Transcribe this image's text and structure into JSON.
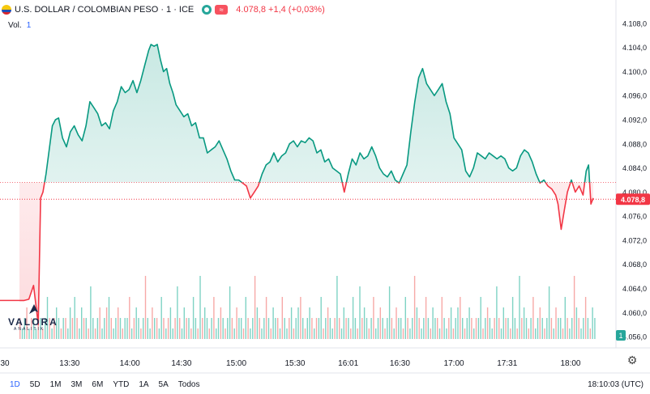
{
  "header": {
    "instrument": "U.S. DOLLAR / COLOMBIAN PESO · 1 · ICE",
    "price_change": "4.078,8 +1,4 (+0,03%)",
    "volume_label": "Vol.",
    "volume_value": "1",
    "flag_icon": "usd-cop-flag-icon"
  },
  "logo": {
    "name": "VALORA",
    "sub": "ANALITIK"
  },
  "timeframes": [
    "1D",
    "5D",
    "1M",
    "3M",
    "6M",
    "YTD",
    "1A",
    "5A",
    "Todos"
  ],
  "active_timeframe": "1D",
  "clock": "18:10:03 (UTC)",
  "colors": {
    "up": "#089981",
    "down": "#f23645",
    "vol_up": "#7fd3c4",
    "vol_down": "#f7a9a7",
    "current": "#f23645"
  },
  "chart_data": {
    "type": "area",
    "y_ticks": [
      "4.108,0",
      "4.104,0",
      "4.100,0",
      "4.096,0",
      "4.092,0",
      "4.088,0",
      "4.084,0",
      "4.080,0",
      "4.076,0",
      "4.072,0",
      "4.068,0",
      "4.064,0",
      "4.060,0",
      "4.056,0"
    ],
    "ylim": [
      4055.2,
      4110.0
    ],
    "x_ticks": [
      "30",
      "13:30",
      "14:00",
      "14:30",
      "15:00",
      "15:30",
      "16:01",
      "16:30",
      "17:00",
      "17:31",
      "18:00"
    ],
    "reference_price": 4081.6,
    "current_price_label": "4.078,8",
    "current_price": 4078.8,
    "volume_badge": "1",
    "x": [
      0,
      6,
      12,
      18,
      24,
      27,
      30,
      34,
      38,
      42,
      46,
      50,
      55,
      60,
      65,
      70,
      75,
      80,
      85,
      90,
      95,
      100,
      105,
      110,
      115,
      120,
      125,
      130,
      135,
      140,
      145,
      150,
      155,
      160,
      165,
      168,
      172,
      176,
      180,
      184,
      188,
      192,
      196,
      200,
      205,
      210,
      215,
      220,
      225,
      230,
      235,
      240,
      245,
      250,
      255,
      260,
      265,
      270,
      275,
      280,
      285,
      290,
      295,
      300,
      305,
      310,
      315,
      320,
      325,
      330,
      335,
      340,
      345,
      350,
      355,
      360,
      365,
      370,
      375,
      380,
      385,
      390,
      395,
      400,
      405,
      410,
      415,
      420,
      425,
      430,
      435,
      440,
      445,
      450,
      455,
      460,
      465,
      470,
      475,
      480,
      485,
      490,
      495,
      500,
      505,
      510,
      515,
      520,
      525,
      530,
      535,
      540,
      545,
      550,
      555,
      560,
      565,
      570,
      575,
      580,
      585,
      590,
      595,
      600,
      605,
      610,
      615,
      620,
      625,
      630,
      635,
      640,
      645,
      650,
      655,
      660,
      665,
      670,
      675,
      680,
      685,
      688,
      692,
      696,
      700,
      705,
      710,
      715,
      720,
      724,
      727,
      730,
      733
    ],
    "values": [
      4062.0,
      4062.0,
      4062.2,
      4064.5,
      4058.0,
      4079.0,
      4080.0,
      4083.0,
      4087.0,
      4091.0,
      4092.0,
      4092.3,
      4089.0,
      4087.5,
      4090.0,
      4091.0,
      4089.5,
      4088.5,
      4091.0,
      4095.0,
      4094.0,
      4093.0,
      4091.0,
      4091.5,
      4090.5,
      4093.5,
      4095.0,
      4097.5,
      4096.5,
      4097.0,
      4098.5,
      4096.5,
      4098.5,
      4101.0,
      4103.5,
      4104.5,
      4104.2,
      4104.5,
      4102.0,
      4100.0,
      4100.5,
      4098.0,
      4096.5,
      4094.5,
      4093.5,
      4092.5,
      4093.0,
      4091.0,
      4091.5,
      4089.0,
      4089.0,
      4086.5,
      4087.0,
      4087.5,
      4088.5,
      4087.0,
      4085.5,
      4083.5,
      4082.0,
      4082.0,
      4081.5,
      4081.0,
      4079.0,
      4080.0,
      4081.0,
      4083.0,
      4084.5,
      4085.0,
      4086.5,
      4085.0,
      4086.0,
      4086.5,
      4088.0,
      4088.5,
      4087.5,
      4088.5,
      4088.2,
      4089.0,
      4088.5,
      4086.5,
      4087.0,
      4085.0,
      4085.5,
      4084.0,
      4083.5,
      4083.0,
      4080.0,
      4083.0,
      4085.5,
      4084.5,
      4086.5,
      4085.5,
      4086.0,
      4087.5,
      4086.0,
      4084.0,
      4083.0,
      4082.5,
      4083.5,
      4082.0,
      4081.5,
      4083.0,
      4084.5,
      4090.0,
      4095.0,
      4099.0,
      4100.5,
      4098.0,
      4097.0,
      4096.0,
      4097.0,
      4098.0,
      4095.0,
      4093.0,
      4089.0,
      4088.0,
      4087.0,
      4083.5,
      4082.5,
      4084.0,
      4086.5,
      4086.0,
      4085.5,
      4086.5,
      4086.0,
      4085.5,
      4086.0,
      4085.5,
      4084.0,
      4083.5,
      4084.0,
      4086.0,
      4087.0,
      4086.5,
      4085.0,
      4083.0,
      4081.5,
      4082.0,
      4081.0,
      4080.5,
      4079.5,
      4078.0,
      4073.8,
      4077.0,
      4080.0,
      4082.0,
      4080.0,
      4081.0,
      4079.5,
      4083.5,
      4084.5,
      4078.0,
      4079.0
    ],
    "volume_bars": [
      2,
      1,
      2,
      3,
      1,
      2,
      2,
      1,
      3,
      2,
      1,
      2,
      4,
      2,
      1,
      2,
      3,
      2,
      1,
      2,
      2,
      1,
      3,
      2,
      4,
      2,
      1,
      3,
      2,
      2,
      1,
      5,
      2,
      1,
      2,
      3,
      1,
      2,
      3,
      4,
      2,
      1,
      2,
      3,
      2,
      1,
      2,
      2,
      4,
      1,
      2,
      3,
      2,
      1,
      2,
      6,
      2,
      1,
      3,
      2,
      2,
      1,
      4,
      2,
      1,
      2,
      3,
      1,
      2,
      5,
      2,
      1,
      3,
      2,
      2,
      1,
      4,
      2,
      1,
      6,
      2,
      3,
      2,
      1,
      2,
      4,
      1,
      2,
      3,
      2,
      1,
      2,
      5,
      2,
      1,
      3,
      2,
      2,
      1,
      4,
      2,
      1,
      2,
      6,
      3,
      2,
      1,
      2,
      4,
      2,
      1,
      3,
      2,
      2,
      1,
      4,
      2,
      1,
      2,
      3,
      1,
      2,
      3,
      4,
      2,
      1,
      2,
      3,
      2,
      1,
      2,
      2,
      4,
      1,
      2,
      3,
      2,
      1,
      2,
      6,
      2,
      1,
      3,
      2,
      2,
      1,
      4,
      2,
      1,
      5,
      2,
      3,
      2,
      1,
      2,
      4,
      1,
      2,
      3,
      2,
      1,
      2,
      5,
      2,
      1,
      3,
      2,
      2,
      1,
      4,
      2,
      1,
      2,
      6,
      3,
      2,
      1,
      2,
      4,
      2,
      1,
      3,
      2,
      2,
      1,
      4,
      2,
      1,
      2,
      3,
      1,
      2,
      3,
      4,
      2,
      1,
      2,
      3,
      2,
      1,
      2,
      2,
      4,
      1,
      2,
      3,
      2,
      1,
      2,
      5,
      2,
      1,
      3,
      2,
      2,
      1,
      4,
      2,
      1,
      6,
      2,
      3,
      2,
      1,
      2,
      4,
      1,
      2,
      3,
      2,
      1,
      2,
      5,
      2,
      1,
      3,
      2,
      2,
      1,
      4,
      2,
      1,
      2,
      6,
      3,
      2,
      1,
      2,
      4,
      2,
      1,
      3,
      2
    ],
    "volume_colors": "alternating"
  }
}
